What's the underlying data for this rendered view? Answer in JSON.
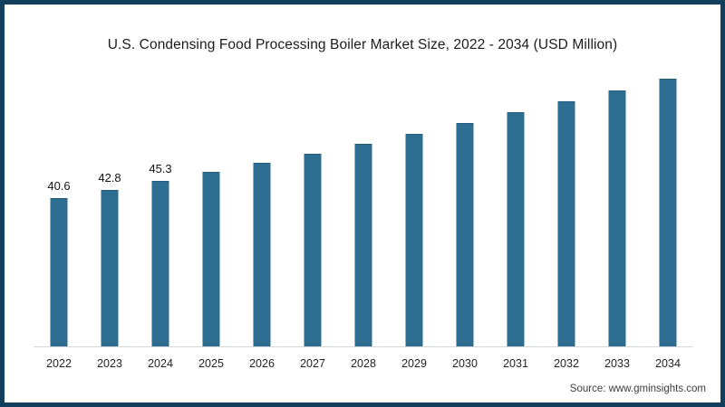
{
  "frame": {
    "border_color": "#123F5C",
    "background": "#FFFFFF"
  },
  "source": "Source: www.gminsights.com",
  "chart_data": {
    "type": "bar",
    "title": "U.S. Condensing Food Processing Boiler Market Size, 2022 - 2034 (USD Million)",
    "categories": [
      "2022",
      "2023",
      "2024",
      "2025",
      "2026",
      "2027",
      "2028",
      "2029",
      "2030",
      "2031",
      "2032",
      "2033",
      "2034"
    ],
    "values": [
      40.6,
      42.8,
      45.3,
      47.8,
      50.3,
      52.9,
      55.5,
      58.3,
      61.2,
      64.2,
      67.2,
      70.3,
      73.4
    ],
    "data_labels": [
      "40.6",
      "42.8",
      "45.3",
      "",
      "",
      "",
      "",
      "",
      "",
      "",
      "",
      "",
      ""
    ],
    "xlabel": "",
    "ylabel": "",
    "ylim": [
      0,
      77
    ],
    "grid": false,
    "legend": "none",
    "y_axis_visible": false,
    "bar_color": "#2E6D92",
    "axis_line_color": "#D8D8D8",
    "label_color": "#111111",
    "tick_label_color": "#1F1F1F"
  }
}
